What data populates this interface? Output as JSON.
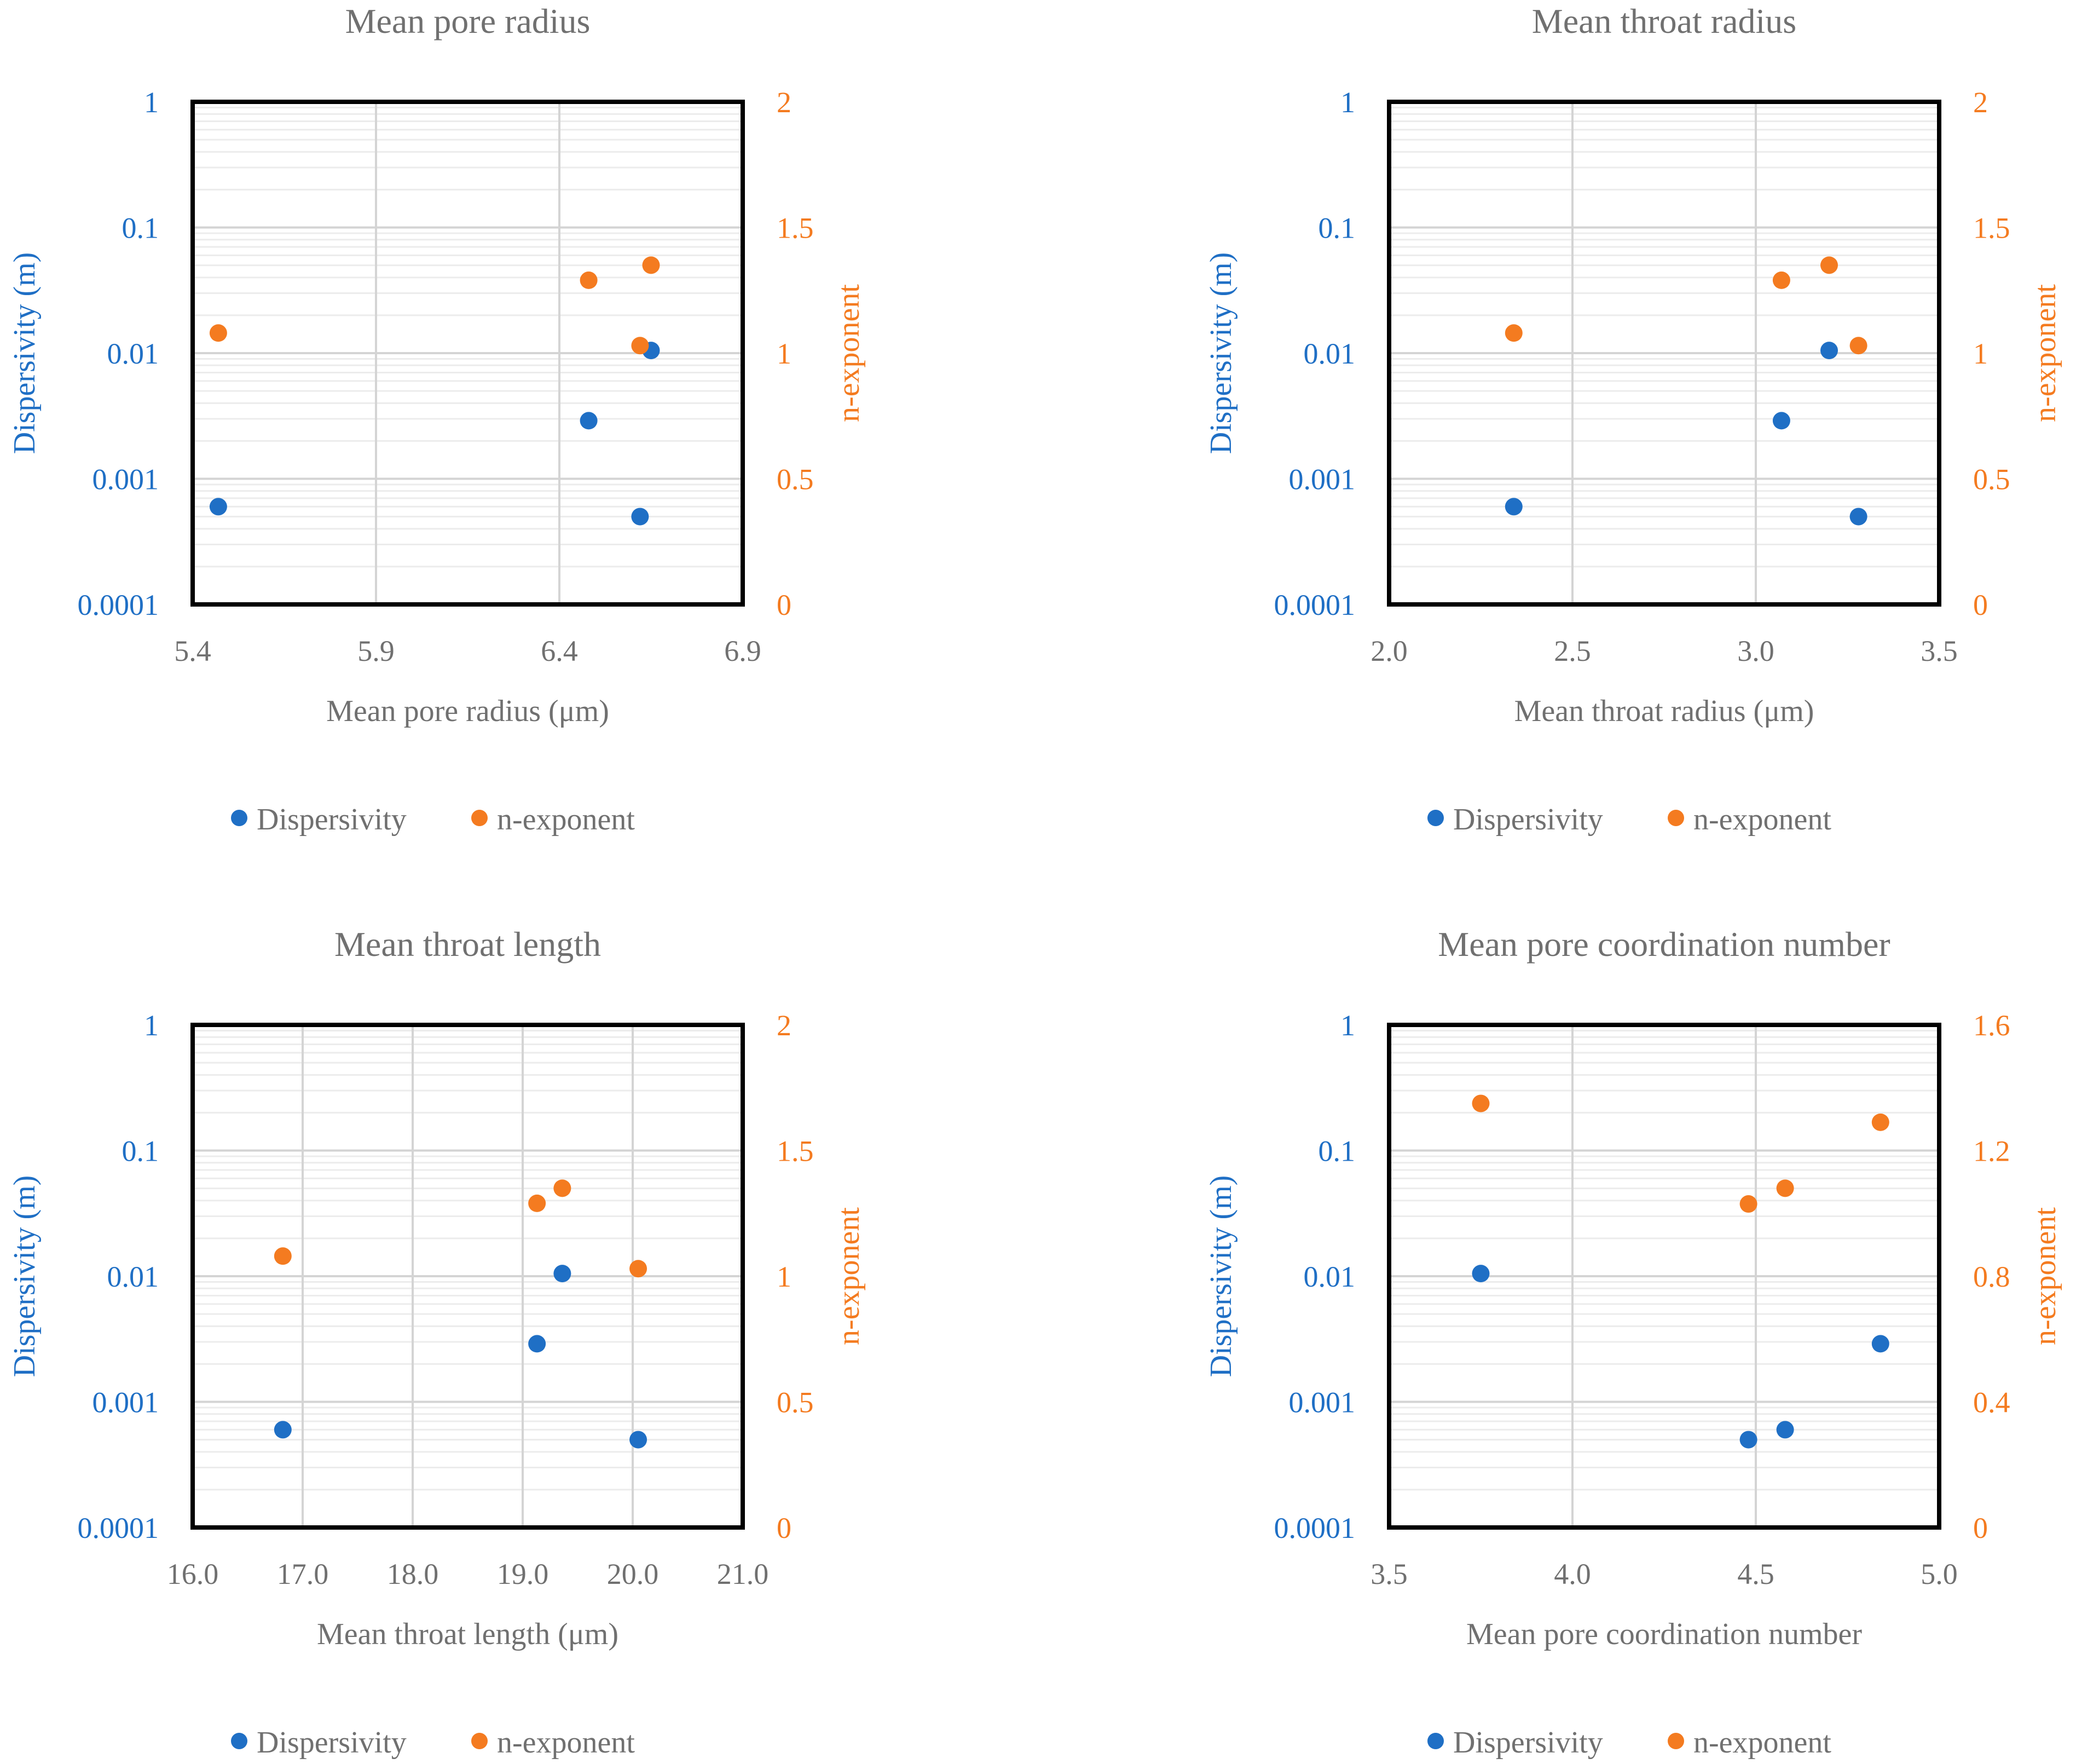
{
  "colors": {
    "dispersivity": "#1f6fc5",
    "n_exponent": "#f47b20",
    "title": "#707070",
    "axis_text": "#707070",
    "grid_major": "#d4d4d4",
    "grid_minor": "#ececec",
    "frame": "#000000"
  },
  "chart_data": [
    {
      "type": "scatter",
      "title": "Mean pore radius",
      "xlabel": "Mean pore radius (μm)",
      "ylabel": "Dispersivity (m)",
      "y2label": "n-exponent",
      "xlim": [
        5.4,
        6.9
      ],
      "x_ticks": [
        5.4,
        5.9,
        6.4,
        6.9
      ],
      "x_tick_labels": [
        "5.4",
        "5.9",
        "6.4",
        "6.9"
      ],
      "y_scale": "log",
      "ylim": [
        0.0001,
        1
      ],
      "y_tick_labels": [
        "1",
        "0.1",
        "0.01",
        "0.001",
        "0.0001"
      ],
      "y2lim": [
        0,
        2
      ],
      "y2_ticks": [
        2,
        1.5,
        1,
        0.5,
        0
      ],
      "y2_tick_labels": [
        "2",
        "1.5",
        "1",
        "0.5",
        "0"
      ],
      "grid": true,
      "legend_position": "bottom",
      "series": [
        {
          "name": "Dispersivity",
          "axis": "left",
          "points": [
            [
              5.47,
              0.0006
            ],
            [
              6.48,
              0.0029
            ],
            [
              6.62,
              0.0005
            ],
            [
              6.65,
              0.0105
            ]
          ]
        },
        {
          "name": "n-exponent",
          "axis": "right",
          "points": [
            [
              5.47,
              1.08
            ],
            [
              6.48,
              1.29
            ],
            [
              6.62,
              1.03
            ],
            [
              6.65,
              1.35
            ]
          ]
        }
      ]
    },
    {
      "type": "scatter",
      "title": "Mean throat radius",
      "xlabel": "Mean throat radius (μm)",
      "ylabel": "Dispersivity (m)",
      "y2label": "n-exponent",
      "xlim": [
        2.0,
        3.5
      ],
      "x_ticks": [
        2.0,
        2.5,
        3.0,
        3.5
      ],
      "x_tick_labels": [
        "2.0",
        "2.5",
        "3.0",
        "3.5"
      ],
      "y_scale": "log",
      "ylim": [
        0.0001,
        1
      ],
      "y_tick_labels": [
        "1",
        "0.1",
        "0.01",
        "0.001",
        "0.0001"
      ],
      "y2lim": [
        0,
        2
      ],
      "y2_ticks": [
        2,
        1.5,
        1,
        0.5,
        0
      ],
      "y2_tick_labels": [
        "2",
        "1.5",
        "1",
        "0.5",
        "0"
      ],
      "grid": true,
      "legend_position": "bottom",
      "series": [
        {
          "name": "Dispersivity",
          "axis": "left",
          "points": [
            [
              2.34,
              0.0006
            ],
            [
              3.07,
              0.0029
            ],
            [
              3.2,
              0.0105
            ],
            [
              3.28,
              0.0005
            ]
          ]
        },
        {
          "name": "n-exponent",
          "axis": "right",
          "points": [
            [
              2.34,
              1.08
            ],
            [
              3.07,
              1.29
            ],
            [
              3.2,
              1.35
            ],
            [
              3.28,
              1.03
            ]
          ]
        }
      ]
    },
    {
      "type": "scatter",
      "title": "Mean throat length",
      "xlabel": "Mean throat length (μm)",
      "ylabel": "Dispersivity (m)",
      "y2label": "n-exponent",
      "xlim": [
        16.0,
        21.0
      ],
      "x_ticks": [
        16.0,
        17.0,
        18.0,
        19.0,
        20.0,
        21.0
      ],
      "x_tick_labels": [
        "16.0",
        "17.0",
        "18.0",
        "19.0",
        "20.0",
        "21.0"
      ],
      "y_scale": "log",
      "ylim": [
        0.0001,
        1
      ],
      "y_tick_labels": [
        "1",
        "0.1",
        "0.01",
        "0.001",
        "0.0001"
      ],
      "y2lim": [
        0,
        2
      ],
      "y2_ticks": [
        2,
        1.5,
        1,
        0.5,
        0
      ],
      "y2_tick_labels": [
        "2",
        "1.5",
        "1",
        "0.5",
        "0"
      ],
      "grid": true,
      "legend_position": "bottom",
      "series": [
        {
          "name": "Dispersivity",
          "axis": "left",
          "points": [
            [
              16.82,
              0.0006
            ],
            [
              19.13,
              0.0029
            ],
            [
              19.36,
              0.0105
            ],
            [
              20.05,
              0.0005
            ]
          ]
        },
        {
          "name": "n-exponent",
          "axis": "right",
          "points": [
            [
              16.82,
              1.08
            ],
            [
              19.13,
              1.29
            ],
            [
              19.36,
              1.35
            ],
            [
              20.05,
              1.03
            ]
          ]
        }
      ]
    },
    {
      "type": "scatter",
      "title": "Mean pore coordination number",
      "xlabel": "Mean pore coordination number",
      "ylabel": "Dispersivity (m)",
      "y2label": "n-exponent",
      "xlim": [
        3.5,
        5.0
      ],
      "x_ticks": [
        3.5,
        4.0,
        4.5,
        5.0
      ],
      "x_tick_labels": [
        "3.5",
        "4.0",
        "4.5",
        "5.0"
      ],
      "y_scale": "log",
      "ylim": [
        0.0001,
        1
      ],
      "y_tick_labels": [
        "1",
        "0.1",
        "0.01",
        "0.001",
        "0.0001"
      ],
      "y2lim": [
        0,
        1.6
      ],
      "y2_ticks": [
        1.6,
        1.2,
        0.8,
        0.4,
        0
      ],
      "y2_tick_labels": [
        "1.6",
        "1.2",
        "0.8",
        "0.4",
        "0"
      ],
      "grid": true,
      "legend_position": "bottom",
      "series": [
        {
          "name": "Dispersivity",
          "axis": "left",
          "points": [
            [
              3.75,
              0.0105
            ],
            [
              4.48,
              0.0005
            ],
            [
              4.58,
              0.0006
            ],
            [
              4.84,
              0.0029
            ]
          ]
        },
        {
          "name": "n-exponent",
          "axis": "right",
          "points": [
            [
              3.75,
              1.35
            ],
            [
              4.48,
              1.03
            ],
            [
              4.58,
              1.08
            ],
            [
              4.84,
              1.29
            ]
          ]
        }
      ]
    }
  ]
}
